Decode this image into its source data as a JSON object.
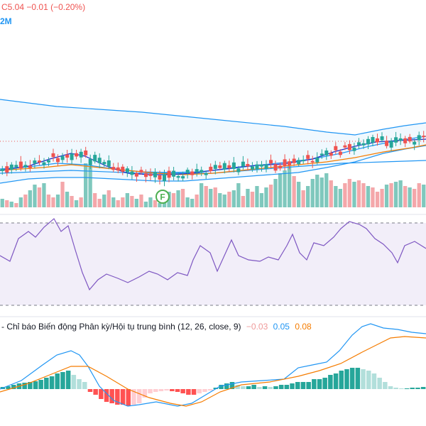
{
  "header": {
    "close_text": "C5.04",
    "change_text": "−0.01 (−0.20%)",
    "volume_text": "2M"
  },
  "panes": {
    "main": {
      "flag_label": "F"
    },
    "macd": {
      "title": "Chỉ báo Biến động Phân kỳ/Hội tụ trung bình (12, 26, close, 9)",
      "hist_value": "−0.03",
      "macd_value": "0.05",
      "signal_value": "0.08"
    }
  },
  "colors": {
    "up": "#26a69a",
    "down": "#ef5350",
    "vol_up": "#7fc8bd",
    "vol_down": "#f4a7aa",
    "bb": "#2196f3",
    "fast_ma": "#1e2cc6",
    "slow_ma": "#f57c00",
    "rsi_line": "#7e57c2",
    "rsi_band": "#ede7f6",
    "macd_line": "#2196f3",
    "signal_line": "#f57c00",
    "hist_up_strong": "#26a69a",
    "hist_up_weak": "#b2dfdb",
    "hist_down_strong": "#ff5252",
    "hist_down_weak": "#ffcdd2"
  }
}
